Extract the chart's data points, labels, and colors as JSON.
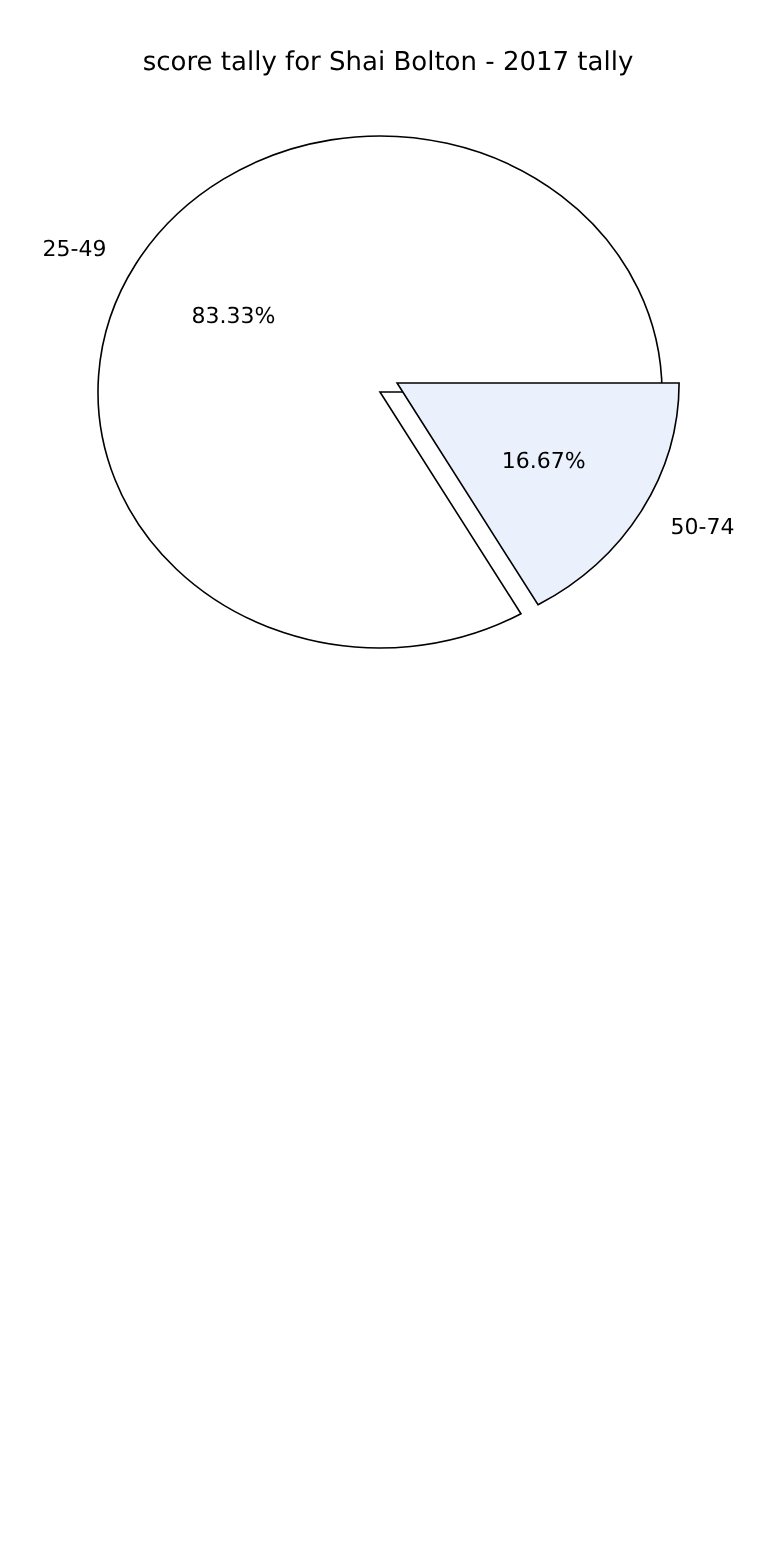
{
  "chart_data": {
    "type": "pie",
    "title": "score tally for Shai Bolton - 2017 tally",
    "categories": [
      "25-49",
      "50-74"
    ],
    "values": [
      83.33,
      16.67
    ],
    "colors": [
      "#ffffff",
      "#eaf0fc"
    ],
    "value_labels": [
      "83.33%",
      "16.67%"
    ]
  }
}
